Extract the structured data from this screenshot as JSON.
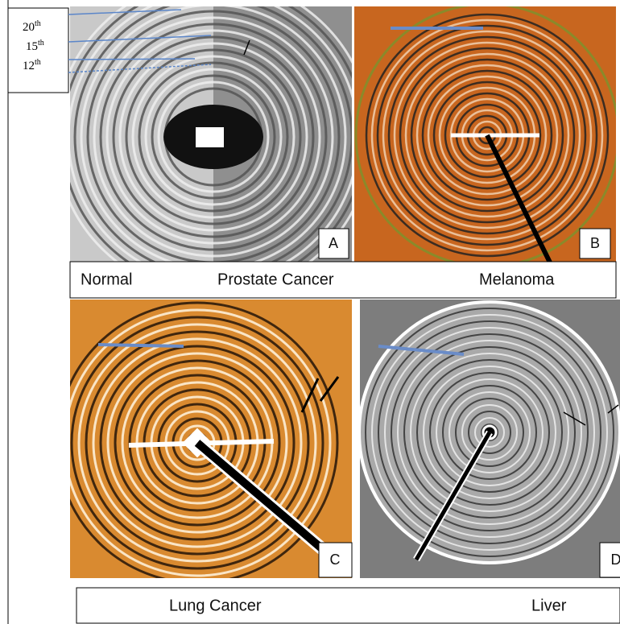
{
  "order_labels": [
    {
      "number": "20",
      "suffix": "th"
    },
    {
      "number": "15",
      "suffix": "th"
    },
    {
      "number": "12",
      "suffix": "th"
    }
  ],
  "panels": [
    {
      "letter": "A"
    },
    {
      "letter": "B"
    },
    {
      "letter": "C"
    },
    {
      "letter": "D"
    }
  ],
  "captions_top": [
    "Normal",
    "Prostate Cancer",
    "Melanoma"
  ],
  "captions_bottom": [
    "Lung Cancer",
    "Liver"
  ]
}
